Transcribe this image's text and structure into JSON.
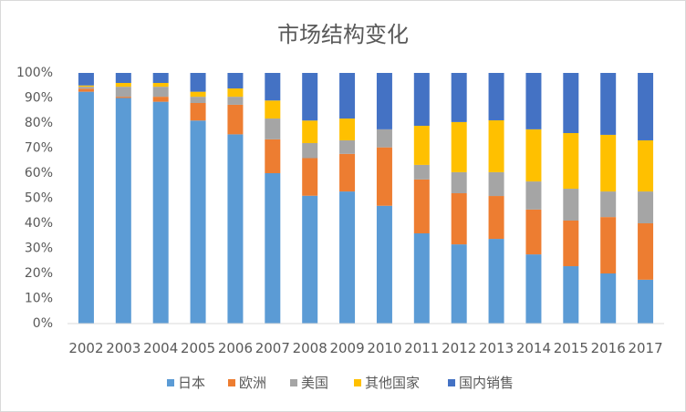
{
  "chart_data": {
    "type": "bar",
    "stacked": "percent",
    "title": "市场结构变化",
    "categories": [
      "2002",
      "2003",
      "2004",
      "2005",
      "2006",
      "2007",
      "2008",
      "2009",
      "2010",
      "2011",
      "2012",
      "2013",
      "2014",
      "2015",
      "2016",
      "2017"
    ],
    "ylim": [
      0,
      100
    ],
    "yticks": [
      "0%",
      "10%",
      "20%",
      "30%",
      "40%",
      "50%",
      "60%",
      "70%",
      "80%",
      "90%",
      "100%"
    ],
    "grid": false,
    "legend_position": "bottom",
    "series": [
      {
        "name": "日本",
        "color": "#5B9BD5",
        "values": [
          92.5,
          90.0,
          88.5,
          81.0,
          75.5,
          60.0,
          51.0,
          52.7,
          47.0,
          36.0,
          31.6,
          33.8,
          27.6,
          22.9,
          20.0,
          17.5
        ]
      },
      {
        "name": "欧洲",
        "color": "#ED7D31",
        "values": [
          1.2,
          0.5,
          2.0,
          7.0,
          11.8,
          13.5,
          15.0,
          15.0,
          23.3,
          21.5,
          20.4,
          17.1,
          17.9,
          18.2,
          22.5,
          22.5
        ]
      },
      {
        "name": "美国",
        "color": "#A5A5A5",
        "values": [
          0.8,
          4.0,
          4.0,
          2.5,
          3.2,
          8.3,
          6.0,
          5.4,
          7.2,
          5.8,
          8.4,
          9.5,
          11.2,
          12.7,
          10.2,
          12.7
        ]
      },
      {
        "name": "其他国家",
        "color": "#FFC000",
        "values": [
          0.5,
          1.5,
          1.5,
          2.0,
          3.3,
          7.2,
          9.0,
          8.7,
          0.0,
          15.6,
          20.0,
          20.7,
          20.8,
          22.2,
          22.6,
          20.4
        ]
      },
      {
        "name": "国内销售",
        "color": "#4472C4",
        "values": [
          5.0,
          4.0,
          4.0,
          7.5,
          6.2,
          11.0,
          19.0,
          18.2,
          22.5,
          21.1,
          19.6,
          18.9,
          22.5,
          24.0,
          24.7,
          26.9
        ]
      }
    ]
  }
}
